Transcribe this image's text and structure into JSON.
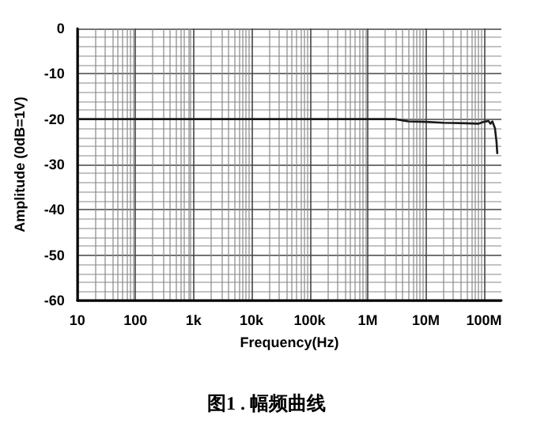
{
  "chart_data": {
    "type": "line",
    "title": "图1 . 幅频曲线",
    "xlabel": "Frequency(Hz)",
    "ylabel": "Amplitude (0dB=1V)",
    "log": "x",
    "grid": true,
    "marker": "none",
    "line_style": "solid",
    "xlim": [
      10,
      200000000
    ],
    "xticks": [
      {
        "value": 10,
        "label": "10"
      },
      {
        "value": 100,
        "label": "100"
      },
      {
        "value": 1000,
        "label": "1k"
      },
      {
        "value": 10000,
        "label": "10k"
      },
      {
        "value": 100000,
        "label": "100k"
      },
      {
        "value": 1000000,
        "label": "1M"
      },
      {
        "value": 10000000,
        "label": "10M"
      },
      {
        "value": 100000000,
        "label": "100M"
      }
    ],
    "ylim": [
      -60,
      0
    ],
    "yticks": [
      -60,
      -50,
      -40,
      -30,
      -20,
      -10,
      0
    ],
    "x": [
      10,
      100,
      1000,
      10000,
      100000,
      1000000,
      3000000,
      5000000,
      10000000,
      20000000,
      50000000,
      80000000,
      100000000,
      120000000,
      130000000,
      140000000,
      155000000,
      165000000,
      170000000
    ],
    "series": [
      {
        "color": "#1a1a1a",
        "values": [
          -20,
          -20,
          -20,
          -20,
          -20,
          -20,
          -20,
          -20.5,
          -20.6,
          -20.8,
          -20.9,
          -21,
          -20.6,
          -20.4,
          -21,
          -20.5,
          -22,
          -25,
          -27.5
        ]
      }
    ]
  }
}
